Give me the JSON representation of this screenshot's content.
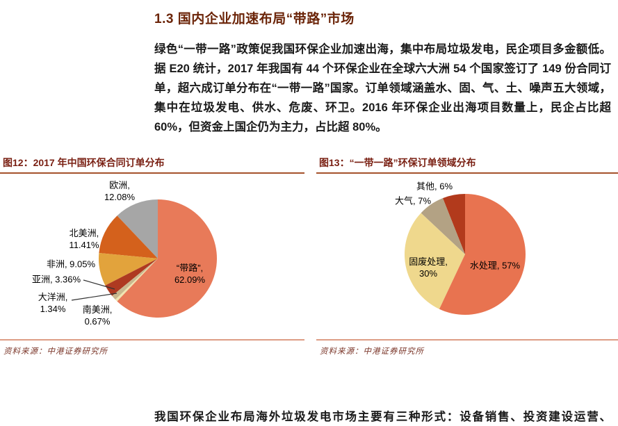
{
  "page": {
    "section_title": "1.3 国内企业加速布局“带路”市场",
    "paragraph": "绿色“一带一路”政策促我国环保企业加速出海，集中布局垃圾发电，民企项目多金额低。据 E20 统计，2017 年我国有 44 个环保企业在全球六大洲 54 个国家签订了 149 份合同订单，超六成订单分布在“一带一路”国家。订单领域涵盖水、固、气、土、噪声五大领域，集中在垃圾发电、供水、危废、环卫。2016 年环保企业出海项目数量上，民企占比超 60%，但资金上国企仍为主力，占比超 80%。",
    "bottom_paragraph": "我国环保企业布局海外垃圾发电市场主要有三种形式：设备销售、投资建设运营、"
  },
  "theme": {
    "title_color": "#6b2408",
    "body_color": "#1a1a1a",
    "figure_title_color": "#7a2013",
    "figure_rule_color": "#a5522b",
    "source_rule_color": "#dd9c84",
    "source_color": "#7a3528"
  },
  "figures": [
    {
      "title": "图12：2017 年中国环保合同订单分布",
      "source": "资料来源：中港证券研究所"
    },
    {
      "title": "图13：“一带一路”环保订单领域分布",
      "source": "资料来源：中港证券研究所"
    }
  ],
  "chart_data": [
    {
      "type": "pie",
      "title": "2017 年中国环保合同订单分布",
      "labels": [
        "“带路”",
        "南美洲",
        "大洋洲",
        "亚洲",
        "非洲",
        "北美洲",
        "欧洲"
      ],
      "values": [
        62.09,
        0.67,
        1.34,
        3.36,
        9.05,
        11.41,
        12.08
      ],
      "unit": "%",
      "colors": [
        "#e87a59",
        "#f0e4b0",
        "#c9b88e",
        "#ae3a21",
        "#e2a33c",
        "#d4611c",
        "#a6a6a6"
      ],
      "start_angle_deg": 0,
      "direction": "clockwise",
      "legend_position": "none",
      "display_labels": [
        "“带路”,\n62.09%",
        "南美洲,\n0.67%",
        "大洋洲,\n1.34%",
        "亚洲, 3.36%",
        "非洲, 9.05%",
        "北美洲,\n11.41%",
        "欧洲,\n12.08%"
      ]
    },
    {
      "type": "pie",
      "title": "“一带一路”环保订单领域分布",
      "labels": [
        "水处理",
        "固废处理",
        "大气",
        "其他"
      ],
      "values": [
        57,
        30,
        7,
        6
      ],
      "unit": "%",
      "colors": [
        "#e87350",
        "#efd88d",
        "#b3a284",
        "#b23a1c"
      ],
      "start_angle_deg": 0,
      "direction": "clockwise",
      "legend_position": "none",
      "display_labels": [
        "水处理, 57%",
        "固废处理,\n30%",
        "大气, 7%",
        "其他, 6%"
      ]
    }
  ]
}
